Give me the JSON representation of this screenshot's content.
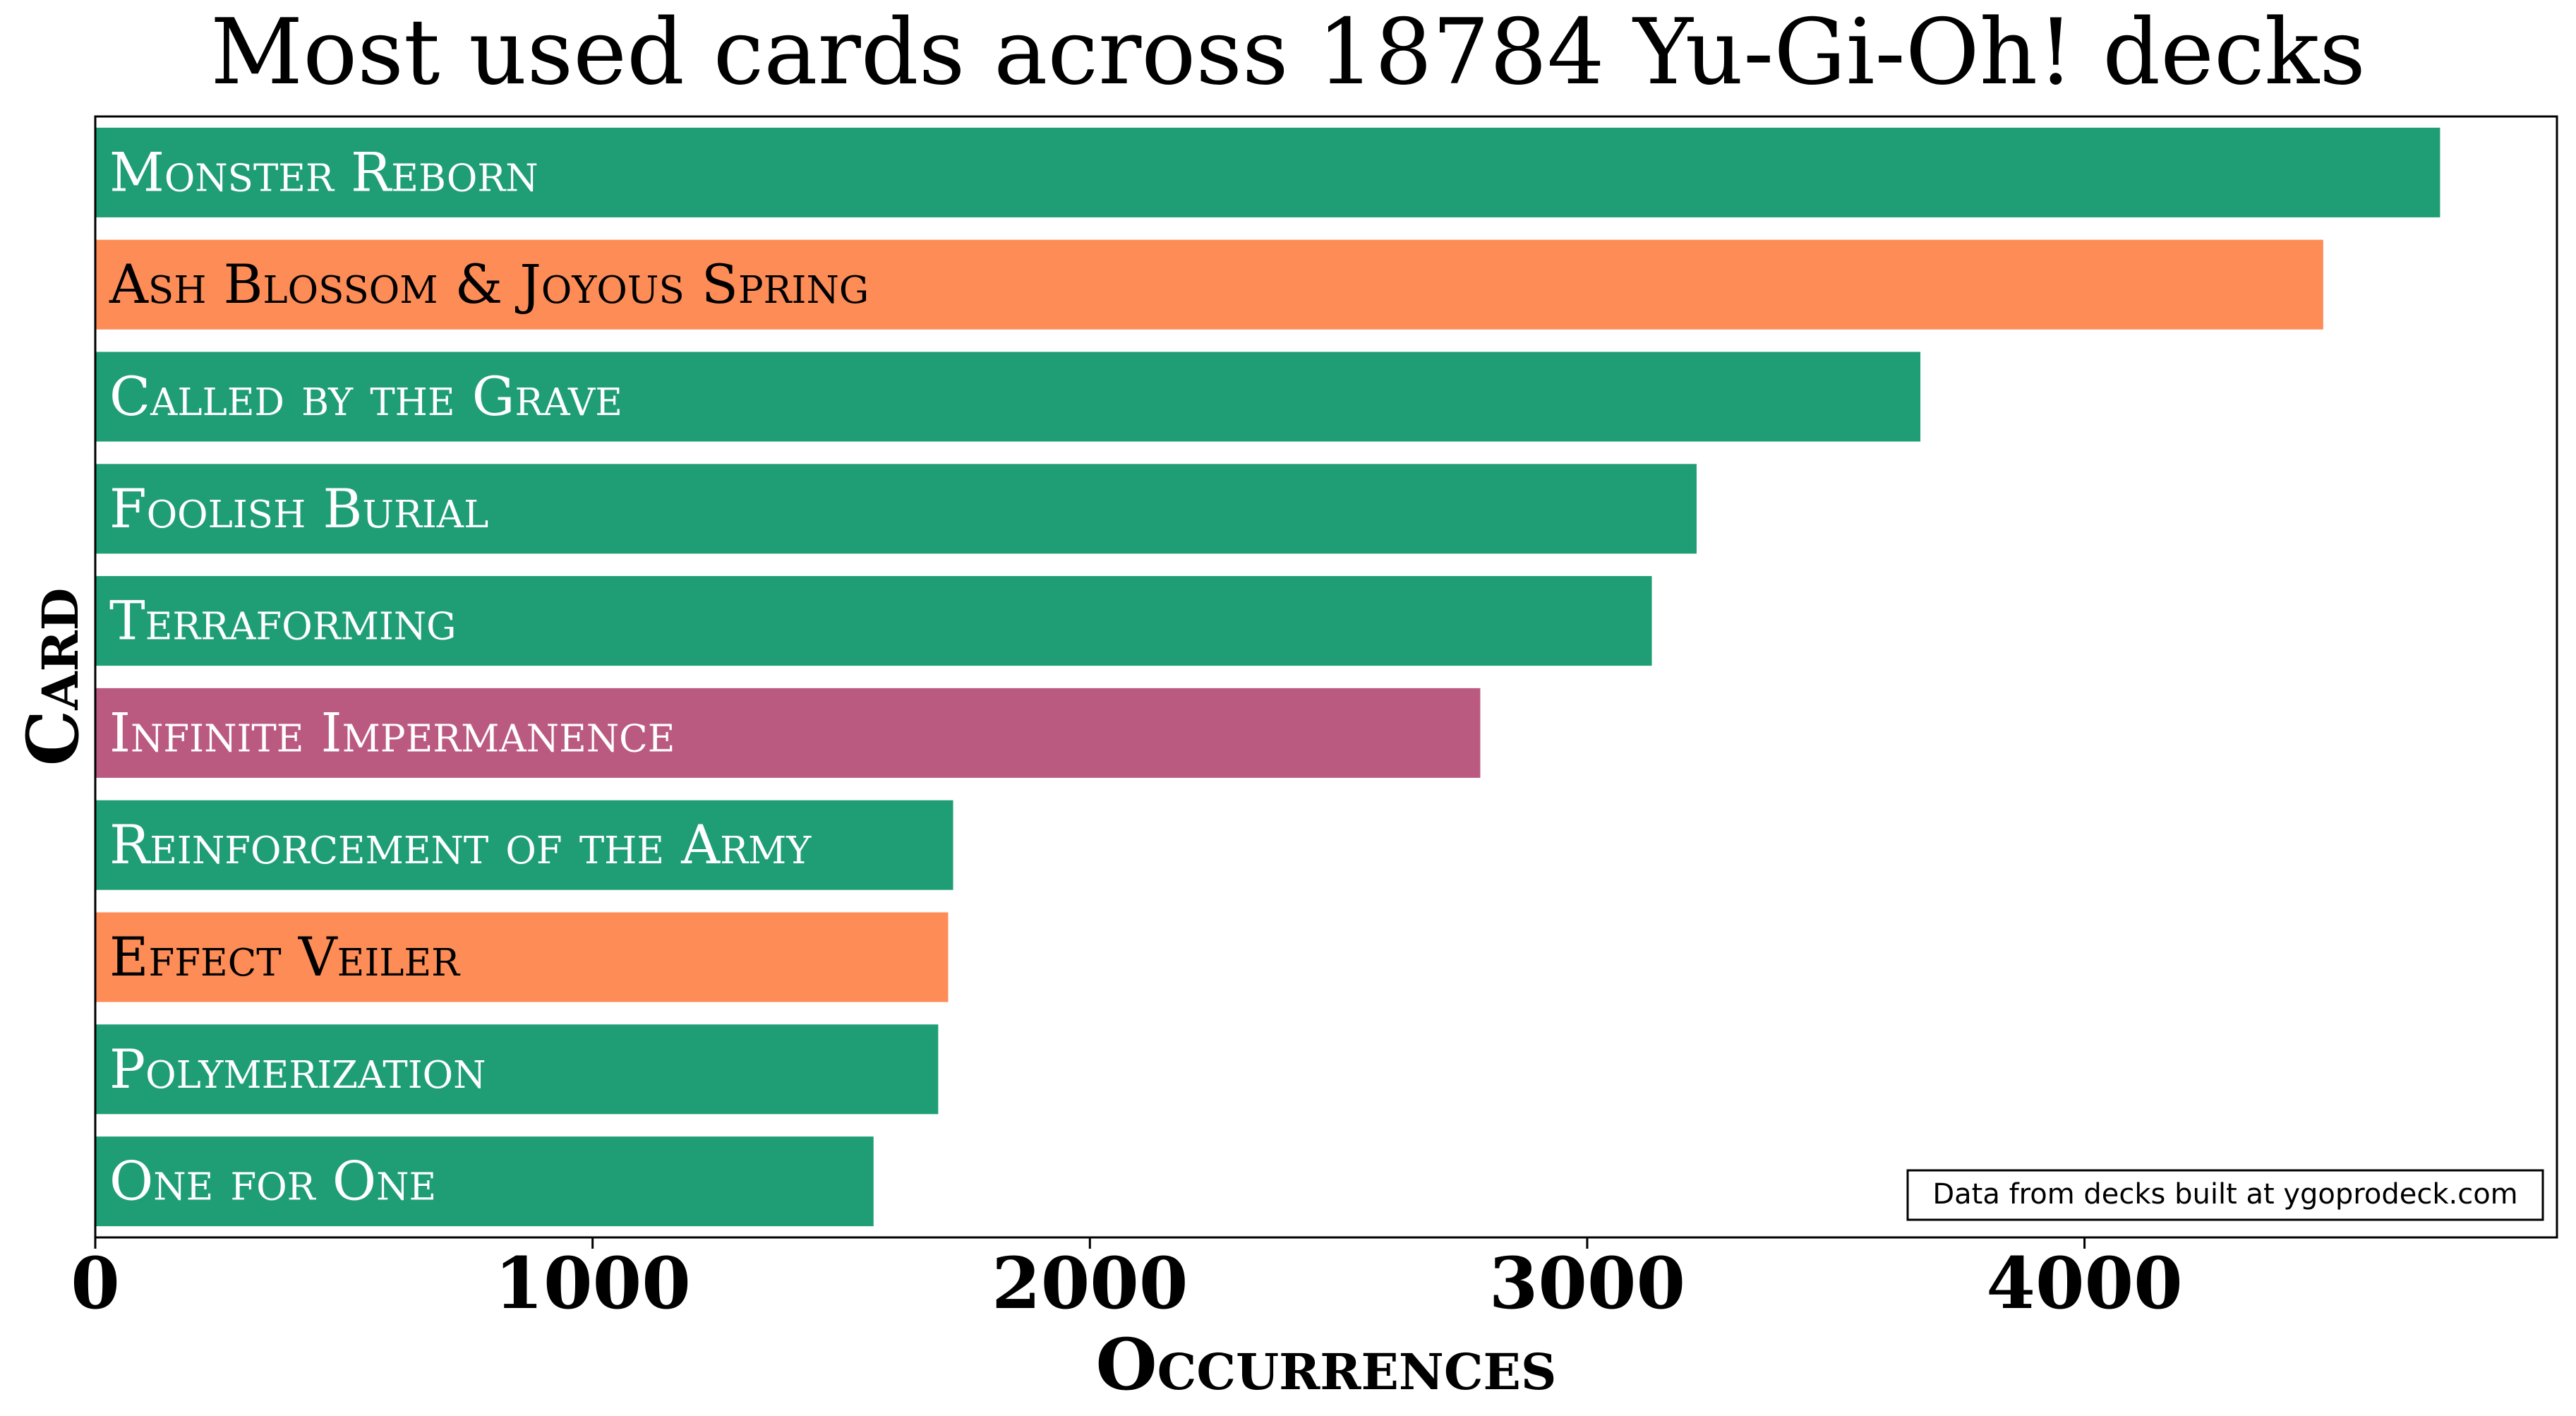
{
  "chart_data": {
    "type": "bar",
    "orientation": "horizontal",
    "title": "Most used cards across 18784 Yu-Gi-Oh! decks",
    "xlabel": "Occurrences",
    "ylabel": "Card",
    "xlim": [
      0,
      4950
    ],
    "xticks": [
      "0",
      "1000",
      "2000",
      "3000",
      "4000"
    ],
    "grid": false,
    "annotation": "Data from decks built at ygoprodeck.com",
    "categories": [
      "Monster Reborn",
      "Ash Blossom & Joyous Spring",
      "Called by the Grave",
      "Foolish Burial",
      "Terraforming",
      "Infinite Impermanence",
      "Reinforcement of the Army",
      "Effect Veiler",
      "Polymerization",
      "One for One"
    ],
    "values": [
      4715,
      4480,
      3670,
      3220,
      3130,
      2785,
      1725,
      1715,
      1695,
      1565
    ],
    "bar_colors": [
      "#1f9e76",
      "#fd8c56",
      "#1f9e76",
      "#1f9e76",
      "#1f9e76",
      "#bb5a81",
      "#1f9e76",
      "#fd8c56",
      "#1f9e76",
      "#1f9e76"
    ],
    "label_colors": [
      "#ffffff",
      "#000000",
      "#ffffff",
      "#ffffff",
      "#ffffff",
      "#ffffff",
      "#ffffff",
      "#000000",
      "#ffffff",
      "#ffffff"
    ]
  }
}
